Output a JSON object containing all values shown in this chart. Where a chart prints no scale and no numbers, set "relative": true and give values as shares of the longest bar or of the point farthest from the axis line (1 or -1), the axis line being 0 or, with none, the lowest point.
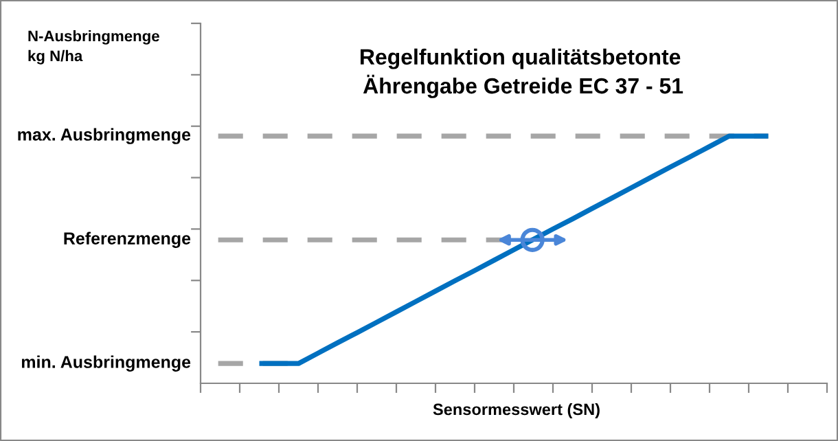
{
  "chart_data": {
    "type": "line",
    "relative": true,
    "title": "Regelfunktion qualitätsbetonte\n Ährengabe Getreide EC 37 - 51",
    "annotations": [
      "N-Ausbringmenge\nkg N/ha"
    ],
    "xlabel": "Sensormesswert (SN)",
    "categories": [
      null,
      null,
      null,
      null,
      null,
      null,
      null,
      null,
      null,
      null,
      null,
      null,
      null,
      null,
      null,
      null,
      null,
      null,
      null,
      null,
      null,
      null,
      null,
      null,
      null,
      null,
      null,
      null,
      null,
      null,
      null,
      null,
      null
    ],
    "series": [
      {
        "color": "#0070c0",
        "values": [
          null,
          null,
          null,
          0.08,
          0.08,
          0.08,
          0.122,
          0.164,
          0.205,
          0.247,
          0.289,
          0.331,
          0.373,
          0.415,
          0.456,
          0.498,
          0.54,
          0.582,
          0.624,
          0.665,
          0.707,
          0.749,
          0.791,
          0.833,
          0.875,
          0.916,
          0.958,
          1,
          1,
          1,
          null,
          null,
          null
        ]
      }
    ],
    "ref_lines": [
      {
        "axis": "y",
        "value": 1,
        "label": "max. Ausbringmenge",
        "color": "#a6a6a6",
        "line_style": "dashed"
      },
      {
        "axis": "y",
        "value": 0.58,
        "label": "Referenzmenge",
        "color": "#a6a6a6",
        "line_style": "dashed"
      },
      {
        "axis": "y",
        "value": 0.08,
        "label": "min. Ausbringmenge",
        "color": "#a6a6a6",
        "line_style": "dashed"
      }
    ]
  }
}
